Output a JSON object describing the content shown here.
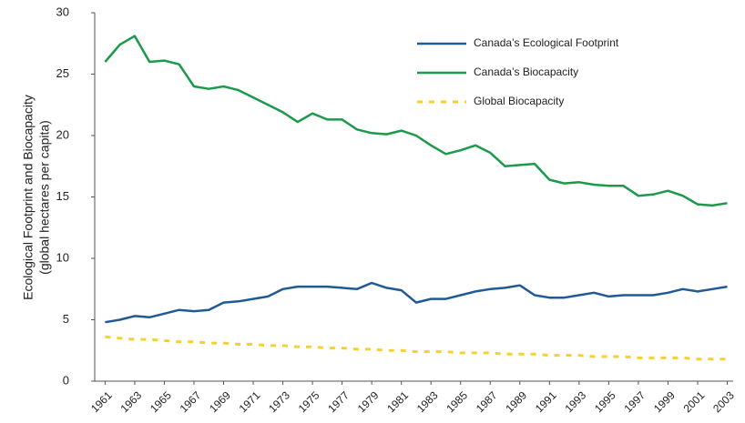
{
  "chart_data": {
    "type": "line",
    "y_label": [
      "Ecological Footprint and Biocapacity",
      "(global hectares per capita)"
    ],
    "x": [
      1961,
      1962,
      1963,
      1964,
      1965,
      1966,
      1967,
      1968,
      1969,
      1970,
      1971,
      1972,
      1973,
      1974,
      1975,
      1976,
      1977,
      1978,
      1979,
      1980,
      1981,
      1982,
      1983,
      1984,
      1985,
      1986,
      1987,
      1988,
      1989,
      1990,
      1991,
      1992,
      1993,
      1994,
      1995,
      1996,
      1997,
      1998,
      1999,
      2000,
      2001,
      2002,
      2003
    ],
    "xlim": [
      1960.3,
      2003.4
    ],
    "xticks": [
      1961,
      1963,
      1965,
      1967,
      1969,
      1971,
      1973,
      1975,
      1977,
      1979,
      1981,
      1983,
      1985,
      1987,
      1989,
      1991,
      1993,
      1995,
      1997,
      1999,
      2001,
      2003
    ],
    "ylim": [
      0,
      30
    ],
    "yticks": [
      0,
      5,
      10,
      15,
      20,
      25,
      30
    ],
    "grid": false,
    "legend": "top-right",
    "series": [
      {
        "name": "Canada’s Ecological Footprint",
        "color": "#1f5a96",
        "dash": false,
        "values": [
          4.8,
          5.0,
          5.3,
          5.2,
          5.5,
          5.8,
          5.7,
          5.8,
          6.4,
          6.5,
          6.7,
          6.9,
          7.5,
          7.7,
          7.7,
          7.7,
          7.6,
          7.5,
          8.0,
          7.6,
          7.4,
          6.4,
          6.7,
          6.7,
          7.0,
          7.3,
          7.5,
          7.6,
          7.8,
          7.0,
          6.8,
          6.8,
          7.0,
          7.2,
          6.9,
          7.0,
          7.0,
          7.0,
          7.2,
          7.5,
          7.3,
          7.5,
          7.7
        ]
      },
      {
        "name": "Canada’s Biocapacity",
        "color": "#1a9a4a",
        "dash": false,
        "values": [
          26.0,
          27.4,
          28.1,
          26.0,
          26.1,
          25.8,
          24.0,
          23.8,
          24.0,
          23.7,
          23.1,
          22.5,
          21.9,
          21.1,
          21.8,
          21.3,
          21.3,
          20.5,
          20.2,
          20.1,
          20.4,
          20.0,
          19.2,
          18.5,
          18.8,
          19.2,
          18.6,
          17.5,
          17.6,
          17.7,
          16.4,
          16.1,
          16.2,
          16.0,
          15.9,
          15.9,
          15.1,
          15.2,
          15.5,
          15.1,
          14.4,
          14.3,
          14.5
        ]
      },
      {
        "name": "Global Biocapacity",
        "color": "#f5d130",
        "dash": true,
        "values": [
          3.6,
          3.5,
          3.4,
          3.4,
          3.3,
          3.2,
          3.2,
          3.1,
          3.1,
          3.0,
          3.0,
          2.9,
          2.9,
          2.8,
          2.8,
          2.7,
          2.7,
          2.6,
          2.6,
          2.5,
          2.5,
          2.4,
          2.4,
          2.4,
          2.3,
          2.3,
          2.3,
          2.2,
          2.2,
          2.2,
          2.1,
          2.1,
          2.1,
          2.0,
          2.0,
          2.0,
          1.9,
          1.9,
          1.9,
          1.9,
          1.8,
          1.8,
          1.8
        ]
      }
    ]
  }
}
